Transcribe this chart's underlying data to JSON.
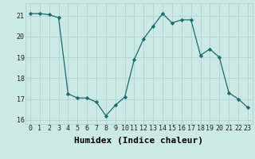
{
  "x": [
    0,
    1,
    2,
    3,
    4,
    5,
    6,
    7,
    8,
    9,
    10,
    11,
    12,
    13,
    14,
    15,
    16,
    17,
    18,
    19,
    20,
    21,
    22,
    23
  ],
  "y": [
    21.1,
    21.1,
    21.05,
    20.9,
    17.25,
    17.05,
    17.05,
    16.85,
    16.2,
    16.7,
    17.1,
    18.9,
    19.9,
    20.5,
    21.1,
    20.65,
    20.8,
    20.8,
    19.1,
    19.4,
    19.0,
    17.3,
    17.0,
    16.6
  ],
  "xlabel": "Humidex (Indice chaleur)",
  "ylim": [
    15.8,
    21.6
  ],
  "xlim": [
    -0.5,
    23.5
  ],
  "yticks": [
    16,
    17,
    18,
    19,
    20,
    21
  ],
  "bg_color": "#cce9e8",
  "line_color": "#1a6b6b",
  "grid_color": "#aacfce",
  "xlabel_fontsize": 8,
  "tick_fontsize": 6
}
